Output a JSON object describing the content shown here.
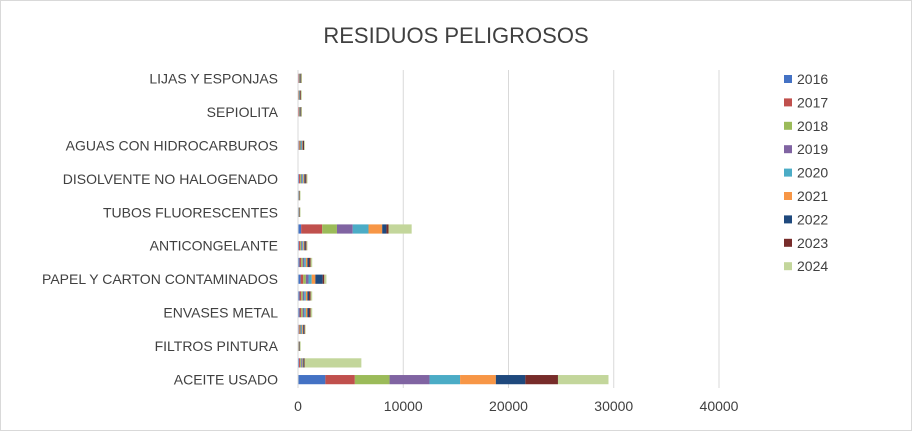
{
  "chart_data": {
    "type": "bar",
    "orientation": "horizontal",
    "stacked": true,
    "title": "RESIDUOS  PELIGROSOS",
    "xlabel": "",
    "ylabel": "",
    "xlim": [
      0,
      40000
    ],
    "xticks": [
      "0",
      "10000",
      "20000",
      "30000",
      "40000"
    ],
    "grid": "vertical",
    "legend": "right",
    "categories_bottom_to_top": [
      "ACEITE USADO",
      "",
      "FILTROS PINTURA",
      "",
      "ENVASES METAL",
      "",
      "PAPEL Y CARTON CONTAMINADOS",
      "",
      "ANTICONGELANTE",
      "",
      "TUBOS FLUORESCENTES",
      "",
      "DISOLVENTE NO HALOGENADO",
      "",
      "AGUAS CON HIDROCARBUROS",
      "",
      "SEPIOLITA",
      "",
      "LIJAS Y ESPONJAS"
    ],
    "series": [
      {
        "name": "2016",
        "color": "#4472c4",
        "values": [
          2600,
          100,
          30,
          80,
          150,
          150,
          250,
          150,
          100,
          300,
          20,
          20,
          100,
          0,
          80,
          0,
          50,
          40,
          60
        ]
      },
      {
        "name": "2017",
        "color": "#c0504d",
        "values": [
          2800,
          100,
          30,
          80,
          150,
          150,
          250,
          150,
          100,
          2000,
          20,
          20,
          100,
          0,
          80,
          0,
          50,
          40,
          50
        ]
      },
      {
        "name": "2018",
        "color": "#9bbb59",
        "values": [
          3300,
          80,
          20,
          80,
          150,
          150,
          250,
          150,
          100,
          1400,
          20,
          20,
          100,
          0,
          80,
          0,
          40,
          40,
          40
        ]
      },
      {
        "name": "2019",
        "color": "#8064a2",
        "values": [
          3800,
          80,
          20,
          80,
          150,
          150,
          250,
          150,
          100,
          1500,
          20,
          20,
          100,
          0,
          70,
          0,
          40,
          40,
          30
        ]
      },
      {
        "name": "2020",
        "color": "#4bacc6",
        "values": [
          2900,
          60,
          20,
          80,
          150,
          150,
          300,
          150,
          100,
          1500,
          20,
          20,
          100,
          0,
          70,
          0,
          30,
          30,
          30
        ]
      },
      {
        "name": "2021",
        "color": "#f79646",
        "values": [
          3400,
          80,
          20,
          80,
          150,
          150,
          350,
          150,
          100,
          1300,
          20,
          20,
          100,
          0,
          70,
          0,
          30,
          30,
          30
        ]
      },
      {
        "name": "2022",
        "color": "#1f497d",
        "values": [
          2800,
          60,
          20,
          80,
          150,
          150,
          700,
          150,
          100,
          400,
          20,
          20,
          100,
          0,
          60,
          0,
          30,
          30,
          30
        ]
      },
      {
        "name": "2023",
        "color": "#772c2a",
        "values": [
          3100,
          60,
          20,
          80,
          150,
          150,
          150,
          150,
          100,
          200,
          20,
          20,
          100,
          0,
          60,
          0,
          30,
          30,
          30
        ]
      },
      {
        "name": "2024",
        "color": "#c3d69b",
        "values": [
          4800,
          5400,
          20,
          80,
          150,
          150,
          200,
          150,
          100,
          2200,
          20,
          20,
          100,
          0,
          60,
          0,
          30,
          30,
          30
        ]
      }
    ]
  }
}
